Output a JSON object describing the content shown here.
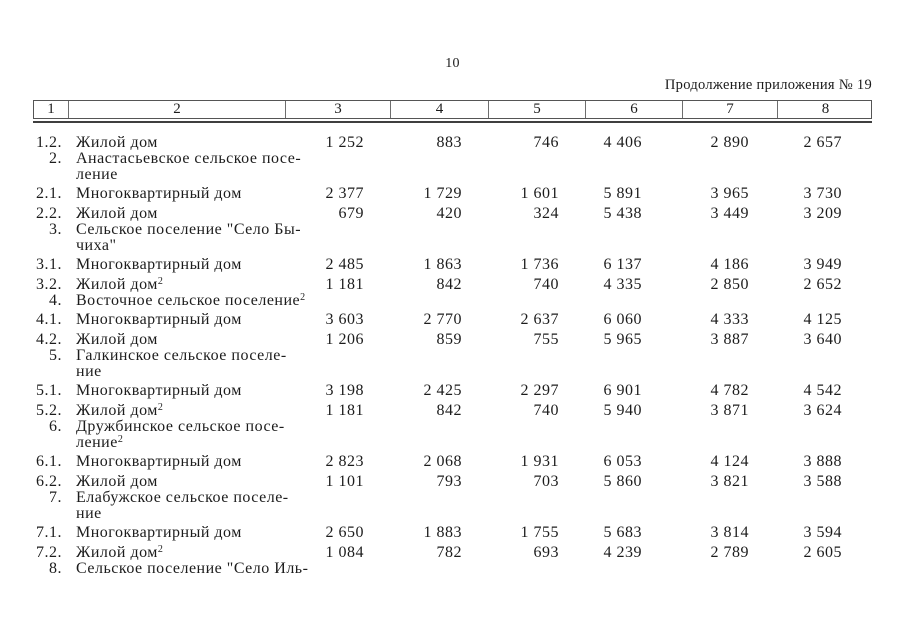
{
  "page": {
    "number": "10",
    "caption": "Продолжение приложения № 19"
  },
  "colors": {
    "text": "#1c1c1c",
    "table_border": "#555555",
    "header_rule": "#3f3f3f",
    "background": "#ffffff"
  },
  "table": {
    "header": [
      "1",
      "2",
      "3",
      "4",
      "5",
      "6",
      "7",
      "8"
    ],
    "rows": [
      {
        "type": "data",
        "num": "1.2.",
        "lines": [
          "Жилой дом"
        ],
        "sup": "",
        "values": [
          "1 252",
          "883",
          "746",
          "4 406",
          "2 890",
          "2 657"
        ]
      },
      {
        "type": "group",
        "num": "2.",
        "lines": [
          "Анастасьевское сельское посе-",
          "ление"
        ],
        "sup": "",
        "values": []
      },
      {
        "type": "data",
        "num": "2.1.",
        "lines": [
          "Многоквартирный дом"
        ],
        "sup": "",
        "values": [
          "2 377",
          "1 729",
          "1 601",
          "5 891",
          "3 965",
          "3 730"
        ]
      },
      {
        "type": "data",
        "num": "2.2.",
        "lines": [
          "Жилой дом"
        ],
        "sup": "",
        "values": [
          "679",
          "420",
          "324",
          "5 438",
          "3 449",
          "3 209"
        ]
      },
      {
        "type": "group",
        "num": "3.",
        "lines": [
          "Сельское поселение \"Село Бы-",
          "чиха\""
        ],
        "sup": "",
        "values": []
      },
      {
        "type": "data",
        "num": "3.1.",
        "lines": [
          "Многоквартирный дом"
        ],
        "sup": "",
        "values": [
          "2 485",
          "1 863",
          "1 736",
          "6 137",
          "4 186",
          "3 949"
        ]
      },
      {
        "type": "data",
        "num": "3.2.",
        "lines": [
          "Жилой дом"
        ],
        "sup": "2",
        "values": [
          "1 181",
          "842",
          "740",
          "4 335",
          "2 850",
          "2 652"
        ]
      },
      {
        "type": "group",
        "num": "4.",
        "lines": [
          "Восточное сельское поселение"
        ],
        "sup": "2",
        "values": []
      },
      {
        "type": "data",
        "num": "4.1.",
        "lines": [
          "Многоквартирный дом"
        ],
        "sup": "",
        "values": [
          "3 603",
          "2 770",
          "2 637",
          "6 060",
          "4 333",
          "4 125"
        ]
      },
      {
        "type": "data",
        "num": "4.2.",
        "lines": [
          "Жилой дом"
        ],
        "sup": "",
        "values": [
          "1 206",
          "859",
          "755",
          "5 965",
          "3 887",
          "3 640"
        ]
      },
      {
        "type": "group",
        "num": "5.",
        "lines": [
          "Галкинское сельское поселе-",
          "ние"
        ],
        "sup": "",
        "values": []
      },
      {
        "type": "data",
        "num": "5.1.",
        "lines": [
          "Многоквартирный дом"
        ],
        "sup": "",
        "values": [
          "3 198",
          "2 425",
          "2 297",
          "6 901",
          "4 782",
          "4 542"
        ]
      },
      {
        "type": "data",
        "num": "5.2.",
        "lines": [
          "Жилой дом"
        ],
        "sup": "2",
        "values": [
          "1 181",
          "842",
          "740",
          "5 940",
          "3 871",
          "3 624"
        ]
      },
      {
        "type": "group",
        "num": "6.",
        "lines": [
          "Дружбинское сельское посе-",
          "ление"
        ],
        "sup": "2",
        "values": []
      },
      {
        "type": "data",
        "num": "6.1.",
        "lines": [
          "Многоквартирный дом"
        ],
        "sup": "",
        "values": [
          "2 823",
          "2 068",
          "1 931",
          "6 053",
          "4 124",
          "3 888"
        ]
      },
      {
        "type": "data",
        "num": "6.2.",
        "lines": [
          "Жилой дом"
        ],
        "sup": "",
        "values": [
          "1 101",
          "793",
          "703",
          "5 860",
          "3 821",
          "3 588"
        ]
      },
      {
        "type": "group",
        "num": "7.",
        "lines": [
          "Елабужское сельское поселе-",
          "ние"
        ],
        "sup": "",
        "values": []
      },
      {
        "type": "data",
        "num": "7.1.",
        "lines": [
          "Многоквартирный дом"
        ],
        "sup": "",
        "values": [
          "2 650",
          "1 883",
          "1 755",
          "5 683",
          "3 814",
          "3 594"
        ]
      },
      {
        "type": "data",
        "num": "7.2.",
        "lines": [
          "Жилой дом"
        ],
        "sup": "2",
        "values": [
          "1 084",
          "782",
          "693",
          "4 239",
          "2 789",
          "2 605"
        ]
      },
      {
        "type": "group",
        "num": "8.",
        "lines": [
          "Сельское поселение \"Село Иль-"
        ],
        "sup": "",
        "values": []
      }
    ]
  }
}
